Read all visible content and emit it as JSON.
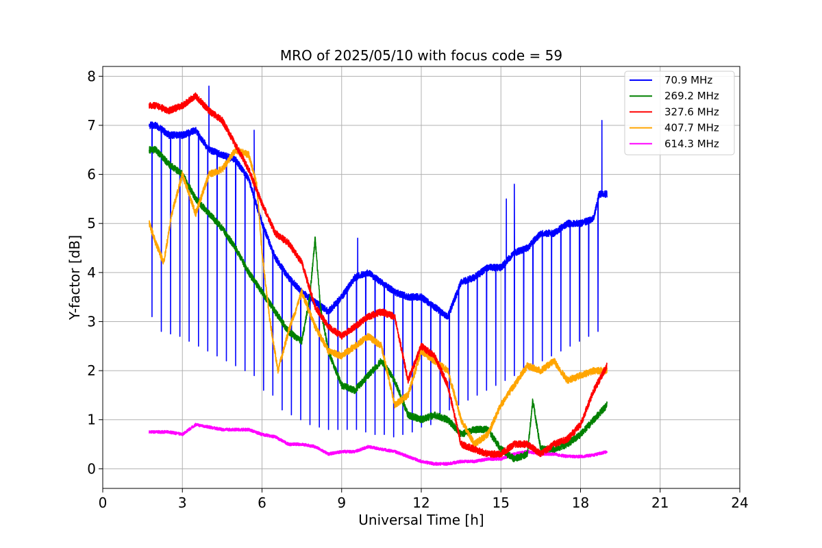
{
  "chart_data": {
    "type": "line",
    "title": "MRO of 2025/05/10 with focus code = 59",
    "xlabel": "Universal Time [h]",
    "ylabel": "Y-factor [dB]",
    "xlim": [
      0,
      24
    ],
    "ylim": [
      -0.4,
      8.2
    ],
    "xticks": [
      "0",
      "3",
      "6",
      "9",
      "12",
      "15",
      "18",
      "21",
      "24"
    ],
    "yticks": [
      "0",
      "1",
      "2",
      "3",
      "4",
      "5",
      "6",
      "7",
      "8"
    ],
    "grid": true,
    "legend_position": "top-right",
    "series": [
      {
        "name": " 70.9 MHz",
        "color": "#0000ff",
        "x": [
          1.75,
          2.0,
          2.5,
          3.0,
          3.5,
          4.0,
          4.5,
          5.0,
          5.5,
          6.0,
          6.5,
          7.0,
          7.5,
          8.0,
          8.5,
          9.0,
          9.5,
          10.0,
          10.5,
          11.0,
          11.5,
          12.0,
          12.5,
          13.0,
          13.5,
          14.0,
          14.5,
          15.0,
          15.5,
          16.0,
          16.5,
          17.0,
          17.5,
          18.0,
          18.5,
          18.7,
          19.0
        ],
        "y": [
          7.0,
          7.0,
          6.8,
          6.8,
          6.9,
          6.5,
          6.4,
          6.3,
          5.9,
          5.0,
          4.3,
          3.9,
          3.6,
          3.4,
          3.2,
          3.5,
          3.9,
          4.0,
          3.8,
          3.6,
          3.5,
          3.5,
          3.3,
          3.1,
          3.8,
          3.9,
          4.1,
          4.1,
          4.4,
          4.5,
          4.8,
          4.8,
          5.0,
          5.0,
          5.1,
          5.6,
          5.6
        ],
        "dip_interval_h": 0.35,
        "dip_values": [
          3.1,
          2.8,
          2.75,
          2.7,
          2.6,
          2.5,
          2.4,
          2.3,
          2.2,
          2.1,
          2.0,
          1.9,
          1.6,
          1.5,
          1.2,
          1.1,
          1.0,
          0.9,
          0.85,
          0.8,
          0.8,
          0.8,
          0.8,
          0.75,
          0.7,
          0.7,
          0.65,
          0.7,
          0.75,
          0.85,
          0.9,
          1.0,
          1.2,
          1.3,
          1.4,
          1.5,
          1.6,
          1.7,
          1.8,
          1.9,
          2.0,
          2.1,
          2.2,
          2.3,
          2.4,
          2.5,
          2.6,
          2.7,
          2.8
        ],
        "spikes": [
          [
            4.0,
            7.8
          ],
          [
            5.7,
            6.9
          ],
          [
            9.6,
            4.7
          ],
          [
            15.2,
            5.5
          ],
          [
            15.5,
            5.8
          ],
          [
            18.8,
            7.1
          ]
        ]
      },
      {
        "name": "269.2 MHz",
        "color": "#008000",
        "x": [
          1.75,
          2.0,
          2.5,
          3.0,
          3.5,
          4.0,
          4.5,
          5.0,
          5.5,
          6.0,
          6.5,
          7.0,
          7.5,
          7.8,
          8.0,
          8.2,
          8.5,
          9.0,
          9.5,
          10.0,
          10.5,
          11.0,
          11.5,
          12.0,
          12.5,
          13.0,
          13.5,
          14.0,
          14.5,
          15.0,
          15.5,
          16.0,
          16.2,
          16.5,
          17.0,
          17.5,
          18.0,
          18.5,
          19.0
        ],
        "y": [
          6.5,
          6.5,
          6.2,
          6.0,
          5.5,
          5.2,
          4.9,
          4.5,
          4.0,
          3.6,
          3.2,
          2.8,
          2.6,
          3.5,
          4.7,
          3.3,
          2.4,
          1.7,
          1.6,
          1.9,
          2.2,
          1.8,
          1.1,
          1.0,
          1.1,
          1.0,
          0.7,
          0.8,
          0.8,
          0.4,
          0.2,
          0.3,
          1.4,
          0.4,
          0.4,
          0.5,
          0.7,
          1.0,
          1.3
        ]
      },
      {
        "name": "327.6 MHz",
        "color": "#ff0000",
        "x": [
          1.75,
          2.0,
          2.5,
          3.0,
          3.5,
          4.0,
          4.5,
          5.0,
          5.5,
          6.0,
          6.5,
          7.0,
          7.5,
          8.0,
          8.5,
          9.0,
          9.5,
          10.0,
          10.5,
          11.0,
          11.5,
          12.0,
          12.5,
          13.0,
          13.5,
          14.0,
          14.5,
          15.0,
          15.5,
          16.0,
          16.5,
          17.0,
          17.5,
          18.0,
          18.5,
          19.0
        ],
        "y": [
          7.4,
          7.4,
          7.3,
          7.4,
          7.6,
          7.3,
          7.1,
          6.6,
          6.1,
          5.4,
          4.8,
          4.6,
          4.2,
          3.3,
          2.9,
          2.7,
          2.9,
          3.1,
          3.2,
          3.1,
          1.8,
          2.5,
          2.3,
          1.7,
          0.5,
          0.4,
          0.3,
          0.3,
          0.5,
          0.5,
          0.3,
          0.5,
          0.6,
          0.9,
          1.6,
          2.1
        ]
      },
      {
        "name": "407.7 MHz",
        "color": "#ffa500",
        "x": [
          1.75,
          2.0,
          2.3,
          2.6,
          3.0,
          3.5,
          4.0,
          4.5,
          5.0,
          5.5,
          5.8,
          6.0,
          6.3,
          6.6,
          7.0,
          7.5,
          8.0,
          8.5,
          9.0,
          9.5,
          10.0,
          10.5,
          11.0,
          11.5,
          12.0,
          12.5,
          13.0,
          13.5,
          14.0,
          14.5,
          15.0,
          15.5,
          16.0,
          16.5,
          17.0,
          17.5,
          18.0,
          18.5,
          19.0
        ],
        "y": [
          5.0,
          4.6,
          4.2,
          5.2,
          6.0,
          5.2,
          6.0,
          6.1,
          6.5,
          6.4,
          5.8,
          4.4,
          3.0,
          2.0,
          2.8,
          3.6,
          2.9,
          2.4,
          2.3,
          2.5,
          2.7,
          2.5,
          1.3,
          1.5,
          2.4,
          2.2,
          2.0,
          1.0,
          0.5,
          0.7,
          1.3,
          1.7,
          2.1,
          2.0,
          2.2,
          1.8,
          1.9,
          2.0,
          2.0
        ]
      },
      {
        "name": "614.3 MHz",
        "color": "#ff00ff",
        "x": [
          1.75,
          2.0,
          2.5,
          3.0,
          3.5,
          4.0,
          4.5,
          5.0,
          5.5,
          6.0,
          6.5,
          7.0,
          7.5,
          8.0,
          8.5,
          9.0,
          9.5,
          10.0,
          10.5,
          11.0,
          11.5,
          12.0,
          12.5,
          13.0,
          13.5,
          14.0,
          14.5,
          15.0,
          15.5,
          16.0,
          16.5,
          17.0,
          17.5,
          18.0,
          18.5,
          19.0
        ],
        "y": [
          0.75,
          0.75,
          0.75,
          0.7,
          0.9,
          0.85,
          0.8,
          0.8,
          0.8,
          0.7,
          0.65,
          0.5,
          0.5,
          0.45,
          0.3,
          0.35,
          0.35,
          0.45,
          0.4,
          0.35,
          0.25,
          0.15,
          0.1,
          0.1,
          0.15,
          0.15,
          0.2,
          0.2,
          0.3,
          0.35,
          0.3,
          0.3,
          0.25,
          0.25,
          0.28,
          0.35
        ]
      }
    ]
  }
}
